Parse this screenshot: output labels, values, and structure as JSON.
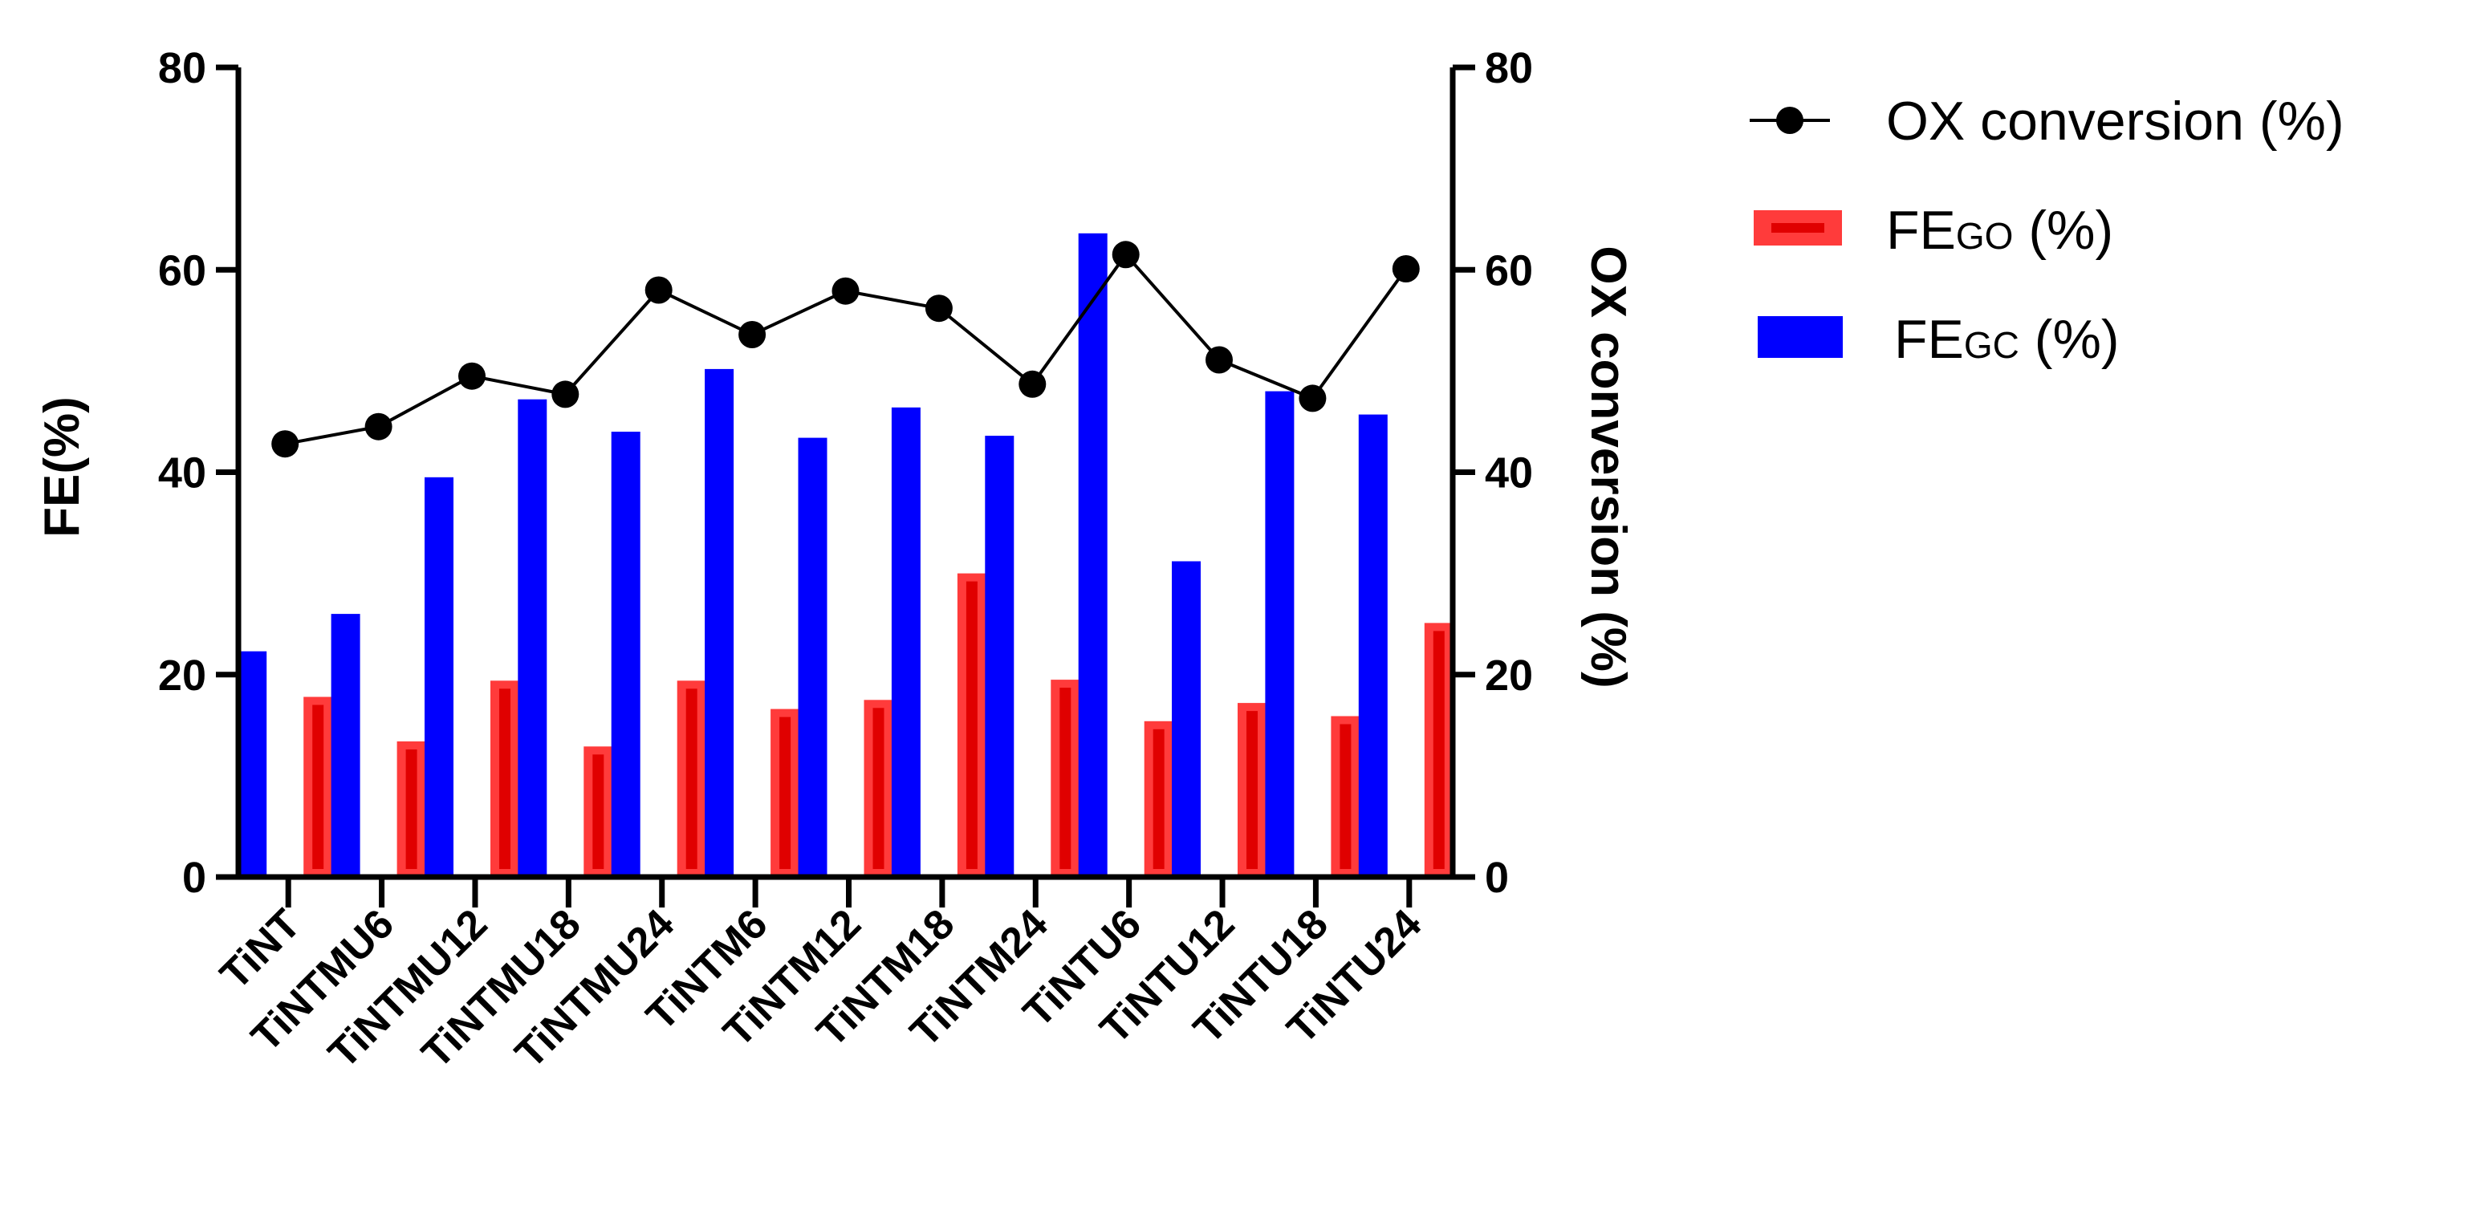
{
  "chart_data": {
    "type": "bar",
    "categories": [
      "TiNT",
      "TiNTMU6",
      "TiNTMU12",
      "TiNTMU18",
      "TiNTMU24",
      "TiNTM6",
      "TiNTM12",
      "TiNTM18",
      "TiNTM24",
      "TiNTU6",
      "TiNTU12",
      "TiNTU18",
      "TiNTU24"
    ],
    "series": [
      {
        "name": "FE_GC (%)",
        "axis": "left",
        "kind": "bar",
        "color": "#0000ff",
        "values": [
          22.3,
          26.0,
          39.5,
          47.2,
          44.0,
          50.2,
          43.4,
          46.4,
          43.6,
          63.6,
          31.2,
          48.0,
          45.7
        ]
      },
      {
        "name": "FE_GO (%)",
        "axis": "left",
        "kind": "bar",
        "color": "#ff3b3b",
        "values": [
          17.8,
          13.4,
          19.4,
          12.9,
          19.4,
          16.6,
          17.5,
          30.0,
          19.5,
          15.4,
          17.2,
          15.9,
          25.1
        ]
      },
      {
        "name": "OX conversion (%)",
        "axis": "right",
        "kind": "line",
        "color": "#000000",
        "values": [
          42.8,
          44.5,
          49.5,
          47.7,
          58.0,
          53.6,
          57.9,
          56.2,
          48.7,
          61.5,
          51.1,
          47.3,
          60.1
        ]
      }
    ],
    "ylabel": "FE(%)",
    "y2label": "OX conversion (%)",
    "ylim": [
      0,
      80
    ],
    "y2lim": [
      0,
      80
    ],
    "yticks": [
      "0",
      "20",
      "40",
      "60",
      "80"
    ],
    "y2ticks": [
      "0",
      "20",
      "40",
      "60",
      "80"
    ],
    "legend": {
      "position": "right",
      "items": [
        {
          "main": "OX conversion (%)",
          "sub": "",
          "suffix": ""
        },
        {
          "main": "FE",
          "sub": "GO",
          "suffix": " (%)"
        },
        {
          "main": "FE",
          "sub": "GC",
          "suffix": " (%)"
        }
      ]
    },
    "grid": false
  }
}
